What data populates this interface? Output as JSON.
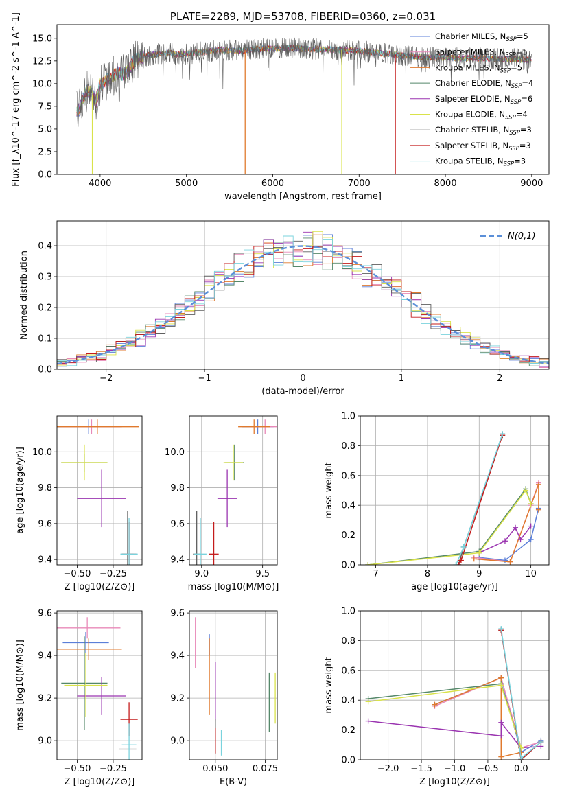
{
  "colors": {
    "Chabrier MILES": "#5b7fd8",
    "Salpeter MILES": "#e889b8",
    "Kroupa MILES": "#e07a2e",
    "Chabrier ELODIE": "#55886a",
    "Salpeter ELODIE": "#9a34b0",
    "Kroupa ELODIE": "#d9e24a",
    "Chabrier STELIB": "#5f5f5f",
    "Salpeter STELIB": "#c41b1b",
    "Kroupa STELIB": "#7ad3dd",
    "normal_curve": "#5b8fd8",
    "grid": "#b0b0b0"
  },
  "chart_data": [
    {
      "id": "spectrum",
      "type": "line",
      "title": "PLATE=2289, MJD=53708, FIBERID=0360, z=0.031",
      "xlabel": "wavelength [Angstrom, rest frame]",
      "ylabel": "Flux [f_λ10^-17 erg cm^-2 s^-1 A^-1]",
      "xlim": [
        3500,
        9200
      ],
      "ylim": [
        0,
        16.5
      ],
      "xticks": [
        "4000",
        "5000",
        "6000",
        "7000",
        "8000",
        "9000"
      ],
      "yticks": [
        "0.0",
        "2.5",
        "5.0",
        "7.5",
        "10.0",
        "12.5",
        "15.0"
      ],
      "grid": false,
      "legend_position": "top-right",
      "legend": [
        {
          "name": "Chabrier MILES",
          "nssp": "5"
        },
        {
          "name": "Salpeter MILES",
          "nssp": "5"
        },
        {
          "name": "Kroupa MILES",
          "nssp": "5"
        },
        {
          "name": "Chabrier ELODIE",
          "nssp": "4"
        },
        {
          "name": "Salpeter ELODIE",
          "nssp": "6"
        },
        {
          "name": "Kroupa ELODIE",
          "nssp": "4"
        },
        {
          "name": "Chabrier STELIB",
          "nssp": "3"
        },
        {
          "name": "Salpeter STELIB",
          "nssp": "3"
        },
        {
          "name": "Kroupa STELIB",
          "nssp": "3"
        }
      ],
      "data_x": [
        3750,
        3800,
        3850,
        3900,
        3950,
        4000,
        4100,
        4200,
        4300,
        4400,
        4500,
        4600,
        4700,
        4800,
        4900,
        5000,
        5200,
        5400,
        5600,
        5800,
        6000,
        6200,
        6400,
        6600,
        6800,
        7000,
        7200,
        7400,
        7600,
        7800,
        8000,
        8200,
        8400,
        8600,
        8800,
        9000
      ],
      "data_y": [
        7.0,
        8.5,
        9.2,
        9.0,
        8.0,
        9.8,
        10.5,
        11.2,
        11.0,
        12.6,
        13.0,
        13.2,
        13.3,
        13.4,
        13.2,
        13.3,
        13.5,
        13.7,
        13.6,
        13.8,
        13.9,
        13.9,
        13.8,
        13.8,
        13.7,
        13.6,
        13.4,
        13.2,
        13.0,
        12.9,
        12.9,
        12.8,
        12.8,
        12.7,
        12.7,
        12.6
      ],
      "gaps": [
        {
          "x": 3910,
          "color_key": "Kroupa ELODIE"
        },
        {
          "x": 5680,
          "color_key": "Kroupa MILES"
        },
        {
          "x": 6800,
          "color_key": "Kroupa ELODIE"
        },
        {
          "x": 7420,
          "color_key": "Salpeter STELIB"
        }
      ]
    },
    {
      "id": "residuals",
      "type": "line",
      "xlabel": "(data-model)/error",
      "ylabel": "Normed distribution",
      "xlim": [
        -2.5,
        2.5
      ],
      "ylim": [
        0,
        0.48
      ],
      "xticks": [
        "−2",
        "−1",
        "0",
        "1",
        "2"
      ],
      "yticks": [
        "0.0",
        "0.1",
        "0.2",
        "0.3",
        "0.4"
      ],
      "grid": true,
      "legend_position": "top-right",
      "legend": [
        {
          "name": "N(0,1)"
        }
      ],
      "histogram_bin_width": 0.1,
      "histogram_series": [
        "Chabrier MILES",
        "Salpeter MILES",
        "Kroupa MILES",
        "Chabrier ELODIE",
        "Salpeter ELODIE",
        "Kroupa ELODIE",
        "Chabrier STELIB",
        "Salpeter STELIB",
        "Kroupa STELIB"
      ]
    },
    {
      "id": "age_vs_Z",
      "type": "scatter",
      "xlabel": "Z [log10(Z/Z⊙)]",
      "ylabel": "age [log10(age/yr)]",
      "xlim": [
        -0.64,
        -0.05
      ],
      "ylim": [
        9.37,
        10.2
      ],
      "xticks": [
        "−0.50",
        "−0.25"
      ],
      "yticks": [
        "9.4",
        "9.6",
        "9.8",
        "10.0"
      ],
      "grid": true,
      "points": [
        {
          "s": "Chabrier MILES",
          "x": -0.42,
          "y": 10.14,
          "xerr": 0.23,
          "yerr": 0.04
        },
        {
          "s": "Salpeter MILES",
          "x": -0.4,
          "y": 10.14,
          "xerr": 0.21,
          "yerr": 0.04
        },
        {
          "s": "Kroupa MILES",
          "x": -0.36,
          "y": 10.14,
          "xerr": 0.29,
          "yerr": 0.04
        },
        {
          "s": "Chabrier ELODIE",
          "x": -0.45,
          "y": 9.94,
          "xerr": 0.16,
          "yerr": 0.05
        },
        {
          "s": "Salpeter ELODIE",
          "x": -0.33,
          "y": 9.74,
          "xerr": 0.17,
          "yerr": 0.16
        },
        {
          "s": "Kroupa ELODIE",
          "x": -0.45,
          "y": 9.94,
          "xerr": 0.16,
          "yerr": 0.1
        },
        {
          "s": "Chabrier STELIB",
          "x": -0.15,
          "y": 9.43,
          "xerr": 0.04,
          "yerr": 0.24
        },
        {
          "s": "Salpeter STELIB",
          "x": -0.14,
          "y": 9.43,
          "xerr": 0.05,
          "yerr": 0.18
        },
        {
          "s": "Kroupa STELIB",
          "x": -0.14,
          "y": 9.43,
          "xerr": 0.06,
          "yerr": 0.2
        }
      ]
    },
    {
      "id": "age_vs_mass",
      "type": "scatter",
      "xlabel": "mass [log10(M/M⊙)]",
      "xlim": [
        8.9,
        9.62
      ],
      "ylim": [
        9.37,
        10.2
      ],
      "xticks": [
        "9.0",
        "9.5"
      ],
      "yticks": [
        "9.4",
        "9.6",
        "9.8",
        "10.0"
      ],
      "grid": true,
      "points": [
        {
          "s": "Chabrier MILES",
          "x": 9.46,
          "y": 10.14,
          "xerr": 0.13,
          "yerr": 0.04
        },
        {
          "s": "Salpeter MILES",
          "x": 9.52,
          "y": 10.14,
          "xerr": 0.13,
          "yerr": 0.04
        },
        {
          "s": "Kroupa MILES",
          "x": 9.43,
          "y": 10.14,
          "xerr": 0.13,
          "yerr": 0.04
        },
        {
          "s": "Chabrier ELODIE",
          "x": 9.27,
          "y": 9.94,
          "xerr": 0.08,
          "yerr": 0.1
        },
        {
          "s": "Salpeter ELODIE",
          "x": 9.21,
          "y": 9.74,
          "xerr": 0.08,
          "yerr": 0.16
        },
        {
          "s": "Kroupa ELODIE",
          "x": 9.26,
          "y": 9.94,
          "xerr": 0.08,
          "yerr": 0.1
        },
        {
          "s": "Chabrier STELIB",
          "x": 8.96,
          "y": 9.43,
          "xerr": 0.03,
          "yerr": 0.24
        },
        {
          "s": "Salpeter STELIB",
          "x": 9.1,
          "y": 9.43,
          "xerr": 0.04,
          "yerr": 0.18
        },
        {
          "s": "Kroupa STELIB",
          "x": 8.99,
          "y": 9.43,
          "xerr": 0.05,
          "yerr": 0.2
        }
      ]
    },
    {
      "id": "age_massweight",
      "type": "line",
      "xlabel": "age [log10(age/yr)]",
      "ylabel": "mass weight",
      "xlim": [
        6.7,
        10.35
      ],
      "ylim": [
        0,
        1.0
      ],
      "xticks": [
        "7",
        "8",
        "9",
        "10"
      ],
      "yticks": [
        "0.0",
        "0.2",
        "0.4",
        "0.6",
        "0.8",
        "1.0"
      ],
      "grid": true,
      "series": [
        {
          "s": "Chabrier MILES",
          "x": [
            9.0,
            9.5,
            10.0,
            10.15
          ],
          "y": [
            0.05,
            0.03,
            0.17,
            0.38
          ]
        },
        {
          "s": "Salpeter MILES",
          "x": [
            8.9,
            9.6,
            10.0,
            10.15
          ],
          "y": [
            0.05,
            0.02,
            0.4,
            0.55
          ]
        },
        {
          "s": "Kroupa MILES",
          "x": [
            8.9,
            9.6,
            10.15,
            10.15
          ],
          "y": [
            0.04,
            0.02,
            0.54,
            0.37
          ]
        },
        {
          "s": "Chabrier ELODIE",
          "x": [
            6.85,
            9.0,
            9.9,
            10.0
          ],
          "y": [
            0.0,
            0.09,
            0.51,
            0.41
          ]
        },
        {
          "s": "Salpeter ELODIE",
          "x": [
            9.0,
            9.5,
            9.7,
            9.8,
            10.0
          ],
          "y": [
            0.08,
            0.16,
            0.25,
            0.17,
            0.26
          ]
        },
        {
          "s": "Kroupa ELODIE",
          "x": [
            6.85,
            9.0,
            9.9,
            10.0
          ],
          "y": [
            0.0,
            0.08,
            0.5,
            0.41
          ]
        },
        {
          "s": "Chabrier STELIB",
          "x": [
            8.6,
            8.7,
            9.45
          ],
          "y": [
            0.0,
            0.12,
            0.87
          ]
        },
        {
          "s": "Salpeter STELIB",
          "x": [
            8.6,
            8.65,
            9.45
          ],
          "y": [
            0.0,
            0.03,
            0.87
          ]
        },
        {
          "s": "Kroupa STELIB",
          "x": [
            8.55,
            8.7,
            9.45
          ],
          "y": [
            0.0,
            0.12,
            0.88
          ]
        }
      ]
    },
    {
      "id": "mass_vs_Z",
      "type": "scatter",
      "xlabel": "Z [log10(Z/Z⊙)]",
      "ylabel": "mass [log10(M/M⊙)]",
      "xlim": [
        -0.64,
        -0.05
      ],
      "ylim": [
        8.91,
        9.61
      ],
      "xticks": [
        "−0.50",
        "−0.25"
      ],
      "yticks": [
        "9.0",
        "9.2",
        "9.4",
        "9.6"
      ],
      "grid": true,
      "points": [
        {
          "s": "Chabrier MILES",
          "x": -0.44,
          "y": 9.46,
          "xerr": 0.16,
          "yerr": 0.05
        },
        {
          "s": "Salpeter MILES",
          "x": -0.43,
          "y": 9.53,
          "xerr": 0.23,
          "yerr": 0.05
        },
        {
          "s": "Kroupa MILES",
          "x": -0.42,
          "y": 9.43,
          "xerr": 0.23,
          "yerr": 0.05
        },
        {
          "s": "Chabrier ELODIE",
          "x": -0.45,
          "y": 9.27,
          "xerr": 0.16,
          "yerr": 0.22
        },
        {
          "s": "Salpeter ELODIE",
          "x": -0.33,
          "y": 9.21,
          "xerr": 0.17,
          "yerr": 0.09
        },
        {
          "s": "Kroupa ELODIE",
          "x": -0.44,
          "y": 9.26,
          "xerr": 0.15,
          "yerr": 0.15
        },
        {
          "s": "Chabrier STELIB",
          "x": -0.15,
          "y": 8.96,
          "xerr": 0.06,
          "yerr": 0.0
        },
        {
          "s": "Salpeter STELIB",
          "x": -0.14,
          "y": 9.1,
          "xerr": 0.06,
          "yerr": 0.08
        },
        {
          "s": "Kroupa STELIB",
          "x": -0.14,
          "y": 8.98,
          "xerr": 0.05,
          "yerr": 0.1
        }
      ]
    },
    {
      "id": "mass_vs_ebv",
      "type": "scatter",
      "xlabel": "E(B-V)",
      "xlim": [
        0.037,
        0.081
      ],
      "ylim": [
        8.91,
        9.61
      ],
      "xticks": [
        "0.050",
        "0.075"
      ],
      "yticks": [
        "9.0",
        "9.2",
        "9.4",
        "9.6"
      ],
      "grid": true,
      "points": [
        {
          "s": "Chabrier MILES",
          "x": 0.047,
          "y": 9.45,
          "xerr": 0,
          "yerr": 0.05
        },
        {
          "s": "Salpeter MILES",
          "x": 0.04,
          "y": 9.46,
          "xerr": 0,
          "yerr": 0.12
        },
        {
          "s": "Kroupa MILES",
          "x": 0.047,
          "y": 9.3,
          "xerr": 0,
          "yerr": 0.18
        },
        {
          "s": "Chabrier ELODIE",
          "x": 0.077,
          "y": 9.18,
          "xerr": 0,
          "yerr": 0.14
        },
        {
          "s": "Salpeter ELODIE",
          "x": 0.05,
          "y": 9.23,
          "xerr": 0,
          "yerr": 0.14
        },
        {
          "s": "Kroupa ELODIE",
          "x": 0.08,
          "y": 9.2,
          "xerr": 0,
          "yerr": 0.12
        },
        {
          "s": "Chabrier STELIB",
          "x": 0.05,
          "y": 9.02,
          "xerr": 0,
          "yerr": 0.08
        },
        {
          "s": "Salpeter STELIB",
          "x": 0.05,
          "y": 9.0,
          "xerr": 0,
          "yerr": 0.06
        },
        {
          "s": "Kroupa STELIB",
          "x": 0.053,
          "y": 8.99,
          "xerr": 0,
          "yerr": 0.06
        }
      ]
    },
    {
      "id": "Z_massweight",
      "type": "line",
      "xlabel": "Z [log10(Z/Z⊙)]",
      "ylabel": "mass weight",
      "xlim": [
        -2.42,
        0.42
      ],
      "ylim": [
        0,
        1.0
      ],
      "xticks": [
        "−2.0",
        "−1.5",
        "−1.0",
        "−0.5",
        "0.0"
      ],
      "yticks": [
        "0.0",
        "0.2",
        "0.4",
        "0.6",
        "0.8",
        "1.0"
      ],
      "grid": true,
      "series": [
        {
          "s": "Chabrier MILES",
          "x": [
            -1.3,
            -0.3,
            0.0,
            0.3
          ],
          "y": [
            0.37,
            0.55,
            0.05,
            0.13
          ]
        },
        {
          "s": "Salpeter MILES",
          "x": [
            -1.3,
            -0.3,
            0.0,
            0.3
          ],
          "y": [
            0.36,
            0.55,
            0.08,
            0.12
          ]
        },
        {
          "s": "Kroupa MILES",
          "x": [
            -1.3,
            -0.3,
            -0.3,
            0.0
          ],
          "y": [
            0.37,
            0.55,
            0.02,
            0.05
          ]
        },
        {
          "s": "Chabrier ELODIE",
          "x": [
            -2.3,
            -0.3,
            0.0
          ],
          "y": [
            0.41,
            0.51,
            0.08
          ]
        },
        {
          "s": "Salpeter ELODIE",
          "x": [
            -2.3,
            -0.3,
            -0.3,
            0.0,
            0.3
          ],
          "y": [
            0.26,
            0.16,
            0.25,
            0.08,
            0.09
          ]
        },
        {
          "s": "Kroupa ELODIE",
          "x": [
            -2.3,
            -0.3,
            0.0
          ],
          "y": [
            0.39,
            0.5,
            0.08
          ]
        },
        {
          "s": "Chabrier STELIB",
          "x": [
            -0.3,
            0.0,
            0.3
          ],
          "y": [
            0.87,
            0.0,
            0.12
          ]
        },
        {
          "s": "Salpeter STELIB",
          "x": [
            -0.3,
            0.0,
            0.3
          ],
          "y": [
            0.87,
            0.0,
            0.12
          ]
        },
        {
          "s": "Kroupa STELIB",
          "x": [
            -0.3,
            0.0,
            0.3
          ],
          "y": [
            0.88,
            0.01,
            0.12
          ]
        }
      ]
    }
  ]
}
